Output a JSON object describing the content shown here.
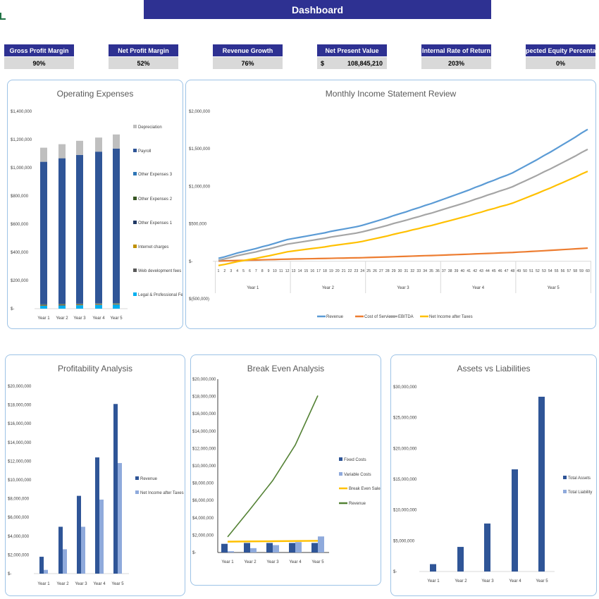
{
  "header": {
    "title": "Dashboard"
  },
  "kpis": [
    {
      "label": "Gross Profit Margin",
      "value": "90%"
    },
    {
      "label": "Net Profit Margin",
      "value": "52%"
    },
    {
      "label": "Revenue Growth",
      "value": "76%"
    },
    {
      "label": "Net Present Value",
      "currency": "$",
      "value": "108,845,210"
    },
    {
      "label": "Internal Rate of Return",
      "value": "203%"
    },
    {
      "label": "Expected Equity Percentage",
      "value": "0%"
    }
  ],
  "colors": {
    "navy": "#2e3192",
    "bar_dark": "#2f5597",
    "bar_light": "#8faadc",
    "grey": "#a5a5a5",
    "revenue_line": "#5b9bd5",
    "cost_line": "#ed7d31",
    "ebitda_line": "#a5a5a5",
    "net_line": "#ffc000",
    "green": "#548235",
    "panel_border": "#9dc3e6"
  },
  "chart_data": [
    {
      "id": "opex",
      "type": "bar",
      "stacked": true,
      "title": "Operating Expenses",
      "categories": [
        "Year 1",
        "Year 2",
        "Year 3",
        "Year 4",
        "Year 5"
      ],
      "ylim": [
        0,
        1400000
      ],
      "yticks": [
        "$-",
        "$200,000",
        "$400,000",
        "$600,000",
        "$800,000",
        "$1,000,000",
        "$1,200,000",
        "$1,400,000"
      ],
      "legend_position": "right",
      "series": [
        {
          "name": "Legal & Professional Fees",
          "color": "#00b0f0",
          "values": [
            20000,
            22000,
            24000,
            26000,
            28000
          ]
        },
        {
          "name": "Web development fees",
          "color": "#595959",
          "values": [
            3000,
            3000,
            3000,
            3000,
            3000
          ]
        },
        {
          "name": "Internet charges",
          "color": "#bf9000",
          "values": [
            3000,
            3000,
            3000,
            3000,
            3000
          ]
        },
        {
          "name": "Other Expenses 1",
          "color": "#1f3864",
          "values": [
            2000,
            2000,
            2000,
            2000,
            2000
          ]
        },
        {
          "name": "Other Expenses 2",
          "color": "#375623",
          "values": [
            2000,
            2000,
            2000,
            2000,
            2000
          ]
        },
        {
          "name": "Other Expenses 3",
          "color": "#2e75b6",
          "values": [
            2000,
            2000,
            2000,
            2000,
            2000
          ]
        },
        {
          "name": "Payroll",
          "color": "#2f5597",
          "values": [
            1010000,
            1033000,
            1055000,
            1076000,
            1096000
          ]
        },
        {
          "name": "Depreciation",
          "color": "#bfbfbf",
          "values": [
            100000,
            100000,
            100000,
            100000,
            100000
          ]
        }
      ]
    },
    {
      "id": "monthly",
      "type": "line",
      "title": "Monthly Income Statement Review",
      "x": [
        1,
        2,
        3,
        4,
        5,
        6,
        7,
        8,
        9,
        10,
        11,
        12,
        13,
        14,
        15,
        16,
        17,
        18,
        19,
        20,
        21,
        22,
        23,
        24,
        25,
        26,
        27,
        28,
        29,
        30,
        31,
        32,
        33,
        34,
        35,
        36,
        37,
        38,
        39,
        40,
        41,
        42,
        43,
        44,
        45,
        46,
        47,
        48,
        49,
        50,
        51,
        52,
        53,
        54,
        55,
        56,
        57,
        58,
        59,
        60
      ],
      "groups": [
        "Year 1",
        "Year 2",
        "Year 3",
        "Year 4",
        "Year 5"
      ],
      "ylim": [
        -500000,
        2000000
      ],
      "yticks": [
        "$(500,000)",
        "$-",
        "$500,000",
        "$1,000,000",
        "$1,500,000",
        "$2,000,000"
      ],
      "legend_position": "bottom",
      "series": [
        {
          "name": "Revenue",
          "color": "#5b9bd5",
          "values": [
            40000,
            60000,
            85000,
            110000,
            130000,
            150000,
            170000,
            195000,
            215000,
            240000,
            265000,
            290000,
            305000,
            320000,
            335000,
            350000,
            365000,
            380000,
            400000,
            415000,
            430000,
            445000,
            460000,
            480000,
            505000,
            530000,
            555000,
            580000,
            610000,
            635000,
            660000,
            690000,
            715000,
            745000,
            770000,
            800000,
            830000,
            860000,
            890000,
            920000,
            950000,
            985000,
            1015000,
            1050000,
            1080000,
            1115000,
            1145000,
            1180000,
            1225000,
            1270000,
            1315000,
            1360000,
            1410000,
            1455000,
            1505000,
            1555000,
            1605000,
            1655000,
            1710000,
            1760000
          ]
        },
        {
          "name": "Cost of Services",
          "color": "#ed7d31",
          "values": [
            4000,
            6000,
            9000,
            11000,
            13000,
            15000,
            17000,
            20000,
            22000,
            24000,
            27000,
            29000,
            31000,
            32000,
            34000,
            35000,
            37000,
            38000,
            40000,
            42000,
            43000,
            45000,
            46000,
            48000,
            51000,
            53000,
            56000,
            58000,
            61000,
            64000,
            66000,
            69000,
            72000,
            75000,
            77000,
            80000,
            83000,
            86000,
            89000,
            92000,
            95000,
            99000,
            102000,
            105000,
            108000,
            112000,
            115000,
            118000,
            123000,
            127000,
            132000,
            136000,
            141000,
            146000,
            151000,
            156000,
            161000,
            166000,
            171000,
            176000
          ]
        },
        {
          "name": "EBITDA",
          "color": "#a5a5a5",
          "values": [
            14000,
            32000,
            53000,
            75000,
            92000,
            109000,
            126000,
            148000,
            165000,
            186000,
            208000,
            229000,
            242000,
            255000,
            268000,
            281000,
            294000,
            307000,
            324000,
            337000,
            350000,
            363000,
            376000,
            393000,
            414000,
            436000,
            457000,
            479000,
            505000,
            526000,
            548000,
            573000,
            595000,
            621000,
            642000,
            668000,
            694000,
            720000,
            745000,
            771000,
            797000,
            827000,
            853000,
            883000,
            909000,
            939000,
            965000,
            995000,
            1034000,
            1072000,
            1111000,
            1150000,
            1193000,
            1231000,
            1274000,
            1317000,
            1360000,
            1403000,
            1451000,
            1494000
          ]
        },
        {
          "name": "Net Income after Taxes",
          "color": "#ffc000",
          "values": [
            -56000,
            -41000,
            -23000,
            -5000,
            10000,
            25000,
            39000,
            57000,
            72000,
            90000,
            108000,
            127000,
            138000,
            149000,
            160000,
            171000,
            181000,
            192000,
            207000,
            218000,
            229000,
            240000,
            251000,
            265000,
            284000,
            302000,
            320000,
            338000,
            360000,
            379000,
            397000,
            419000,
            437000,
            459000,
            477000,
            499000,
            521000,
            543000,
            565000,
            587000,
            609000,
            634000,
            656000,
            682000,
            703000,
            729000,
            750000,
            776000,
            809000,
            842000,
            875000,
            908000,
            944000,
            977000,
            1014000,
            1050000,
            1087000,
            1123000,
            1163000,
            1200000
          ]
        }
      ]
    },
    {
      "id": "profit",
      "type": "bar",
      "title": "Profitability Analysis",
      "categories": [
        "Year 1",
        "Year 2",
        "Year 3",
        "Year 4",
        "Year 5"
      ],
      "ylim": [
        0,
        20000000
      ],
      "yticks": [
        "$-",
        "$2,000,000",
        "$4,000,000",
        "$6,000,000",
        "$8,000,000",
        "$10,000,000",
        "$12,000,000",
        "$14,000,000",
        "$16,000,000",
        "$18,000,000",
        "$20,000,000"
      ],
      "legend_position": "right",
      "series": [
        {
          "name": "Revenue",
          "color": "#2f5597",
          "values": [
            1800000,
            5000000,
            8300000,
            12400000,
            18100000
          ]
        },
        {
          "name": "Net Income after Taxes",
          "color": "#8faadc",
          "values": [
            400000,
            2600000,
            5000000,
            7900000,
            11800000
          ]
        }
      ]
    },
    {
      "id": "breakeven",
      "type": "bar+line",
      "title": "Break Even Analysis",
      "categories": [
        "Year 1",
        "Year 2",
        "Year 3",
        "Year 4",
        "Year 5"
      ],
      "ylim": [
        0,
        20000000
      ],
      "yticks": [
        "$-",
        "$2,000,000",
        "$4,000,000",
        "$6,000,000",
        "$8,000,000",
        "$10,000,000",
        "$12,000,000",
        "$14,000,000",
        "$16,000,000",
        "$18,000,000",
        "$20,000,000"
      ],
      "legend_position": "right",
      "series": [
        {
          "name": "Fixed Costs",
          "kind": "bar",
          "color": "#2f5597",
          "values": [
            1000000,
            1100000,
            1100000,
            1100000,
            1100000
          ]
        },
        {
          "name": "Variable Costs",
          "kind": "bar",
          "color": "#8faadc",
          "values": [
            150000,
            500000,
            850000,
            1200000,
            1850000
          ]
        },
        {
          "name": "Break Even Sales",
          "kind": "line",
          "color": "#ffc000",
          "values": [
            1250000,
            1280000,
            1300000,
            1330000,
            1350000
          ]
        },
        {
          "name": "Revenue",
          "kind": "line",
          "color": "#548235",
          "values": [
            1800000,
            5000000,
            8300000,
            12400000,
            18100000
          ]
        }
      ]
    },
    {
      "id": "assets",
      "type": "bar",
      "title": "Assets vs Liabilities",
      "categories": [
        "Year 1",
        "Year 2",
        "Year 3",
        "Year 4",
        "Year 5"
      ],
      "ylim": [
        0,
        30000000
      ],
      "yticks": [
        "$-",
        "$5,000,000",
        "$10,000,000",
        "$15,000,000",
        "$20,000,000",
        "$25,000,000",
        "$30,000,000"
      ],
      "legend_position": "right",
      "series": [
        {
          "name": "Total Assets",
          "color": "#2f5597",
          "values": [
            1200000,
            4000000,
            7800000,
            16600000,
            28400000
          ]
        },
        {
          "name": "Total Liability",
          "color": "#8faadc",
          "values": [
            0,
            0,
            0,
            0,
            0
          ]
        }
      ]
    }
  ]
}
